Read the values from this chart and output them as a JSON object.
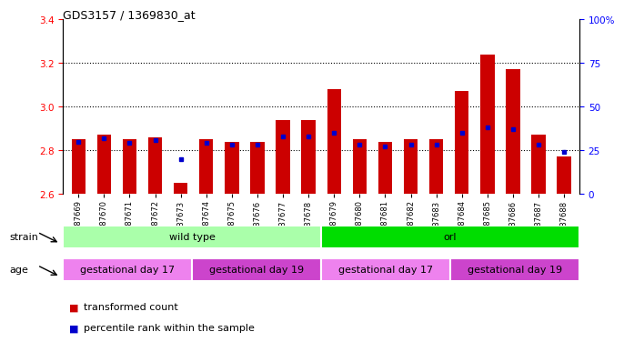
{
  "title": "GDS3157 / 1369830_at",
  "samples": [
    "GSM187669",
    "GSM187670",
    "GSM187671",
    "GSM187672",
    "GSM187673",
    "GSM187674",
    "GSM187675",
    "GSM187676",
    "GSM187677",
    "GSM187678",
    "GSM187679",
    "GSM187680",
    "GSM187681",
    "GSM187682",
    "GSM187683",
    "GSM187684",
    "GSM187685",
    "GSM187686",
    "GSM187687",
    "GSM187688"
  ],
  "transformed_count": [
    2.85,
    2.87,
    2.85,
    2.86,
    2.65,
    2.85,
    2.84,
    2.84,
    2.94,
    2.94,
    3.08,
    2.85,
    2.84,
    2.85,
    2.85,
    3.07,
    3.24,
    3.17,
    2.87,
    2.77
  ],
  "percentile_rank": [
    30,
    32,
    29,
    31,
    20,
    29,
    28,
    28,
    33,
    33,
    35,
    28,
    27,
    28,
    28,
    35,
    38,
    37,
    28,
    24
  ],
  "ylim_left": [
    2.6,
    3.4
  ],
  "ylim_right": [
    0,
    100
  ],
  "yticks_left": [
    2.6,
    2.8,
    3.0,
    3.2,
    3.4
  ],
  "yticks_right": [
    0,
    25,
    50,
    75,
    100
  ],
  "bar_color": "#cc0000",
  "percentile_color": "#0000cc",
  "background_color": "#ffffff",
  "strain_groups": [
    {
      "label": "wild type",
      "start": 0,
      "end": 9,
      "color": "#aaffaa"
    },
    {
      "label": "orl",
      "start": 10,
      "end": 19,
      "color": "#00dd00"
    }
  ],
  "age_groups": [
    {
      "label": "gestational day 17",
      "start": 0,
      "end": 4,
      "color": "#ee82ee"
    },
    {
      "label": "gestational day 19",
      "start": 5,
      "end": 9,
      "color": "#cc44cc"
    },
    {
      "label": "gestational day 17",
      "start": 10,
      "end": 14,
      "color": "#ee82ee"
    },
    {
      "label": "gestational day 19",
      "start": 15,
      "end": 19,
      "color": "#cc44cc"
    }
  ],
  "strain_label": "strain",
  "age_label": "age",
  "legend_red": "transformed count",
  "legend_blue": "percentile rank within the sample",
  "bar_width": 0.55,
  "baseline": 2.6
}
